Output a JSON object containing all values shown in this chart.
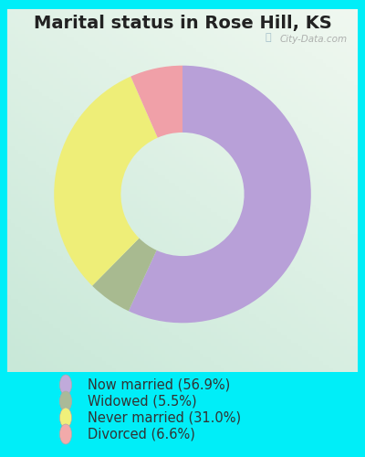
{
  "title": "Marital status in Rose Hill, KS",
  "slices": [
    56.9,
    5.5,
    31.0,
    6.6
  ],
  "labels": [
    "Now married (56.9%)",
    "Widowed (5.5%)",
    "Never married (31.0%)",
    "Divorced (6.6%)"
  ],
  "colors": [
    "#b8a0d8",
    "#a8ba90",
    "#eeee78",
    "#f0a0a8"
  ],
  "legend_colors": [
    "#c0aada",
    "#aaba98",
    "#f0f07a",
    "#f2aaaa"
  ],
  "start_angle": 90,
  "outer_bg": "#00eef8",
  "watermark": "City-Data.com",
  "title_fontsize": 14,
  "legend_fontsize": 10.5,
  "donut_width": 0.52
}
